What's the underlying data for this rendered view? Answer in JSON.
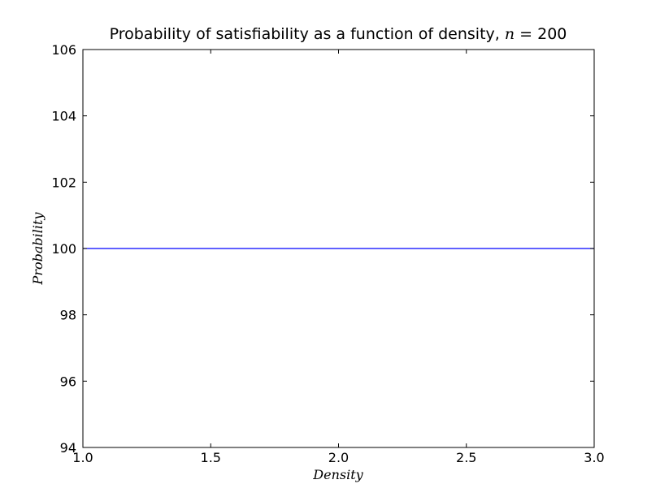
{
  "chart_data": {
    "type": "line",
    "title": "Probability of satisfiability as a function of density,",
    "title_math": "n",
    "title_suffix": " = 200",
    "xlabel": "Density",
    "ylabel": "Probability",
    "xlim": [
      1.0,
      3.0
    ],
    "ylim": [
      94,
      106
    ],
    "x_ticks": [
      1.0,
      1.5,
      2.0,
      2.5,
      3.0
    ],
    "x_tick_labels": [
      "1.0",
      "1.5",
      "2.0",
      "2.5",
      "3.0"
    ],
    "y_ticks": [
      94,
      96,
      98,
      100,
      102,
      104,
      106
    ],
    "y_tick_labels": [
      "94",
      "96",
      "98",
      "100",
      "102",
      "104",
      "106"
    ],
    "grid": false,
    "series": [
      {
        "color": "#0000ff",
        "x": [
          1.0,
          3.0
        ],
        "y": [
          100,
          100
        ]
      }
    ]
  }
}
